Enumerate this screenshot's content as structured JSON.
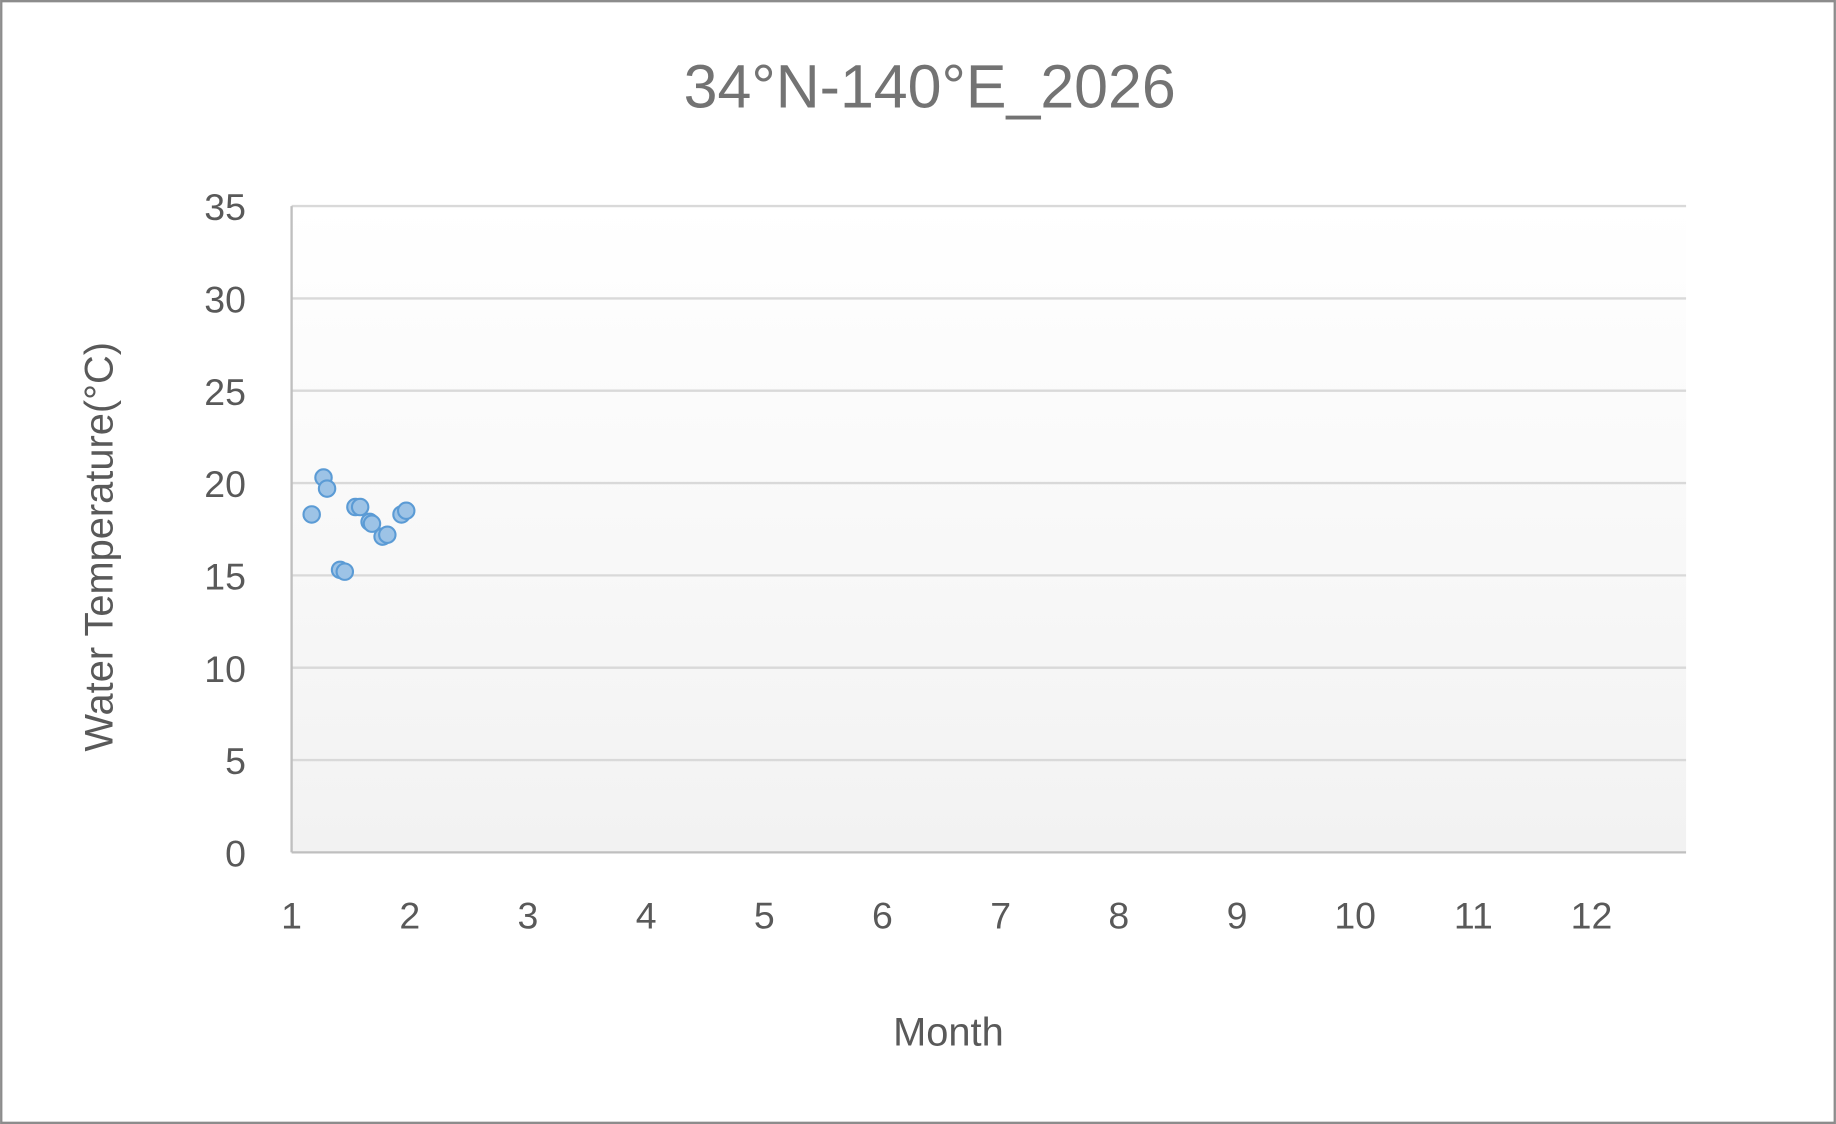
{
  "chart_data": {
    "type": "scatter",
    "title": "34°N-140°E_2026",
    "xlabel": "Month",
    "ylabel": "Water Temperature(°C)",
    "xlim": [
      1,
      12.8
    ],
    "ylim": [
      0,
      35
    ],
    "xticks": [
      "1",
      "2",
      "3",
      "4",
      "5",
      "6",
      "7",
      "8",
      "9",
      "10",
      "11",
      "12"
    ],
    "yticks": [
      "0",
      "5",
      "10",
      "15",
      "20",
      "25",
      "30",
      "35"
    ],
    "grid": true,
    "legend": "none",
    "marker_color": "#9dc3e6",
    "marker_edge_color": "#5b9bd5",
    "points": [
      {
        "x": 1.17,
        "y": 18.3
      },
      {
        "x": 1.27,
        "y": 20.3
      },
      {
        "x": 1.3,
        "y": 19.7
      },
      {
        "x": 1.41,
        "y": 15.3
      },
      {
        "x": 1.45,
        "y": 15.2
      },
      {
        "x": 1.54,
        "y": 18.7
      },
      {
        "x": 1.58,
        "y": 18.7
      },
      {
        "x": 1.66,
        "y": 17.9
      },
      {
        "x": 1.68,
        "y": 17.8
      },
      {
        "x": 1.77,
        "y": 17.1
      },
      {
        "x": 1.81,
        "y": 17.2
      },
      {
        "x": 1.93,
        "y": 18.3
      },
      {
        "x": 1.97,
        "y": 18.5
      }
    ]
  }
}
